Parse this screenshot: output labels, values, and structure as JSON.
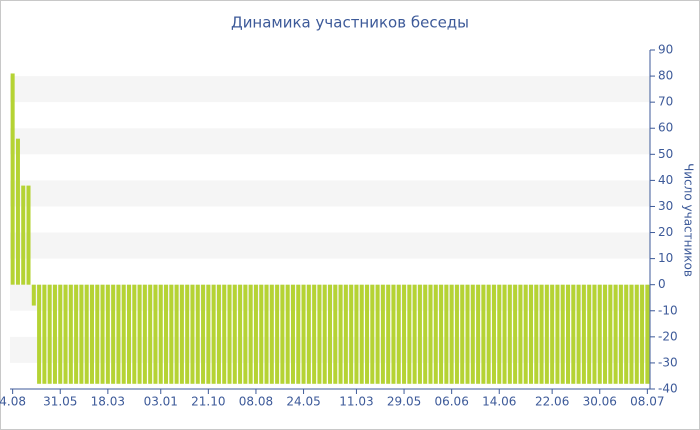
{
  "chart_data": {
    "type": "bar",
    "title": "Динамика участников беседы",
    "y_axis_label": "Число участников",
    "categories": [
      "4.08",
      null,
      null,
      null,
      null,
      null,
      null,
      null,
      null,
      "31.05",
      null,
      null,
      null,
      null,
      null,
      null,
      null,
      null,
      "18.03",
      null,
      null,
      null,
      null,
      null,
      null,
      null,
      null,
      null,
      "03.01",
      null,
      null,
      null,
      null,
      null,
      null,
      null,
      null,
      "21.10",
      null,
      null,
      null,
      null,
      null,
      null,
      null,
      null,
      "08.08",
      null,
      null,
      null,
      null,
      null,
      null,
      null,
      null,
      "24.05",
      null,
      null,
      null,
      null,
      null,
      null,
      null,
      null,
      null,
      "11.03",
      null,
      null,
      null,
      null,
      null,
      null,
      null,
      null,
      "29.05",
      null,
      null,
      null,
      null,
      null,
      null,
      null,
      null,
      "06.06",
      null,
      null,
      null,
      null,
      null,
      null,
      null,
      null,
      "14.06",
      null,
      null,
      null,
      null,
      null,
      null,
      null,
      null,
      null,
      "22.06",
      null,
      null,
      null,
      null,
      null,
      null,
      null,
      null,
      "30.06",
      null,
      null,
      null,
      null,
      null,
      null,
      null,
      null,
      "08.07"
    ],
    "values": [
      81,
      56,
      38,
      38,
      -8,
      -38,
      -38,
      -38,
      -38,
      -38,
      -38,
      -38,
      -38,
      -38,
      -38,
      -38,
      -38,
      -38,
      -38,
      -38,
      -38,
      -38,
      -38,
      -38,
      -38,
      -38,
      -38,
      -38,
      -38,
      -38,
      -38,
      -38,
      -38,
      -38,
      -38,
      -38,
      -38,
      -38,
      -38,
      -38,
      -38,
      -38,
      -38,
      -38,
      -38,
      -38,
      -38,
      -38,
      -38,
      -38,
      -38,
      -38,
      -38,
      -38,
      -38,
      -38,
      -38,
      -38,
      -38,
      -38,
      -38,
      -38,
      -38,
      -38,
      -38,
      -38,
      -38,
      -38,
      -38,
      -38,
      -38,
      -38,
      -38,
      -38,
      -38,
      -38,
      -38,
      -38,
      -38,
      -38,
      -38,
      -38,
      -38,
      -38,
      -38,
      -38,
      -38,
      -38,
      -38,
      -38,
      -38,
      -38,
      -38,
      -38,
      -38,
      -38,
      -38,
      -38,
      -38,
      -38,
      -38,
      -38,
      -38,
      -38,
      -38,
      -38,
      -38,
      -38,
      -38,
      -38,
      -38,
      -38,
      -38,
      -38,
      -38,
      -38,
      -38,
      -38,
      -38,
      -38,
      -38
    ],
    "color": "#b5d334",
    "ylim": [
      -40,
      90
    ],
    "yticks": [
      90,
      80,
      70,
      60,
      50,
      40,
      30,
      20,
      10,
      0,
      -10,
      -20,
      -30,
      -40
    ],
    "grid": "bands",
    "y_axis_side": "right"
  }
}
